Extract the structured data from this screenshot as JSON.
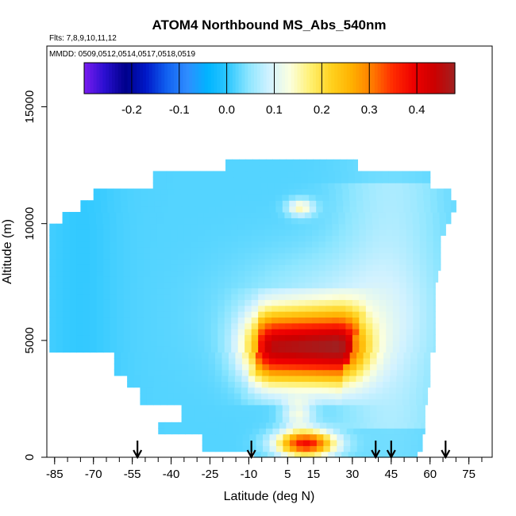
{
  "chart_data": {
    "type": "heatmap",
    "title": "ATOM4 Northbound MS_Abs_540nm",
    "subtitles": [
      "Flts: 7,8,9,10,11,12",
      "MMDD: 0509,0512,0514,0517,0518,0519"
    ],
    "xlabel": "Latitude (deg N)",
    "ylabel": "Altitude (m)",
    "xlim": [
      -88,
      84
    ],
    "ylim": [
      0,
      17600
    ],
    "x_ticks": [
      -85,
      -70,
      -55,
      -40,
      -25,
      -10,
      5,
      15,
      30,
      45,
      60,
      75
    ],
    "x_tick_labels": [
      "-85",
      "-70",
      "-55",
      "-40",
      "-25",
      "-10",
      "5",
      "15",
      "30",
      "45",
      "60",
      "75"
    ],
    "y_ticks": [
      0,
      5000,
      10000,
      15000
    ],
    "y_tick_labels": [
      "0",
      "5000",
      "10000",
      "15000"
    ],
    "colorbar": {
      "range": [
        -0.3,
        0.48
      ],
      "ticks": [
        -0.2,
        -0.1,
        0.0,
        0.1,
        0.2,
        0.3,
        0.4
      ],
      "tick_labels": [
        "-0.2",
        "-0.1",
        "0.0",
        "0.1",
        "0.2",
        "0.3",
        "0.4"
      ],
      "colors": [
        "#7a1cf0",
        "#2a0fd0",
        "#00008a",
        "#0018c8",
        "#1060f0",
        "#2f8cff",
        "#00b4ff",
        "#2fc8ff",
        "#8ee6ff",
        "#d2f2ff",
        "#fbffde",
        "#fff070",
        "#ffd11e",
        "#ffb000",
        "#ff7a00",
        "#ff2a00",
        "#ee0000",
        "#cc0000",
        "#a02020"
      ]
    },
    "arrows_lat": [
      -53,
      -9,
      39,
      45,
      66
    ],
    "grid": false
  }
}
